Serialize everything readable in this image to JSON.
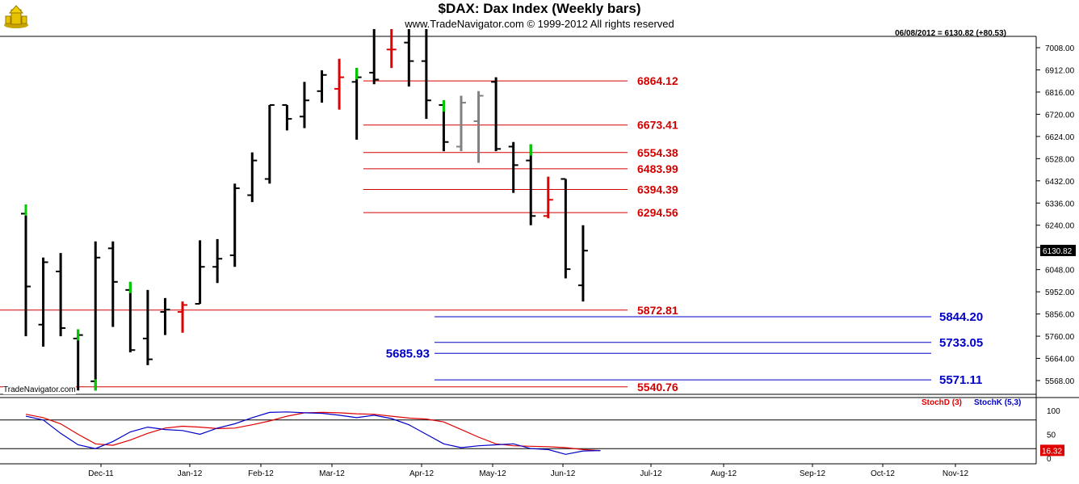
{
  "header": {
    "title": "$DAX:  Dax Index  (Weekly bars)",
    "copyright": "www.TradeNavigator.com © 1999-2012 All rights reserved",
    "last_readout": "06/08/2012 = 6130.82 (+80.53)",
    "watermark": "TradeNavigator.com"
  },
  "colors": {
    "bar_black": "#000000",
    "bar_red": "#e00000",
    "bar_gray": "#808080",
    "bar_green_tick": "#00cc00",
    "fib_red": "#d40000",
    "fib_blue": "#0000c8",
    "stoch_d": "#e00000",
    "stoch_k": "#0000c8"
  },
  "chart_data": [
    {
      "type": "ohlc",
      "title": "$DAX:  Dax Index  (Weekly bars)",
      "y_axis": {
        "ylim": [
          5510,
          7090
        ],
        "ticks": [
          "7008.00",
          "6912.00",
          "6816.00",
          "6720.00",
          "6624.00",
          "6528.00",
          "6432.00",
          "6336.00",
          "6240.00",
          "6144.00",
          "6048.00",
          "5952.00",
          "5856.00",
          "5760.00",
          "5664.00",
          "5568.00"
        ],
        "last_value_label": "6130.82"
      },
      "x_axis": {
        "months": [
          "Dec-11",
          "Jan-12",
          "Feb-12",
          "Mar-12",
          "Apr-12",
          "May-12",
          "Jun-12",
          "Jul-12",
          "Aug-12",
          "Sep-12",
          "Oct-12",
          "Nov-12"
        ]
      },
      "grid": false,
      "bars": [
        {
          "o": 6290,
          "h": 6330,
          "l": 5760,
          "c": 5975,
          "color": "black",
          "top_tick": "green"
        },
        {
          "o": 5810,
          "h": 6100,
          "l": 5715,
          "c": 6080,
          "color": "black"
        },
        {
          "o": 6040,
          "h": 6120,
          "l": 5760,
          "c": 5795,
          "color": "black"
        },
        {
          "o": 5750,
          "h": 5790,
          "l": 5525,
          "c": 5765,
          "color": "black",
          "top_tick": "green"
        },
        {
          "o": 5565,
          "h": 6170,
          "l": 5525,
          "c": 6100,
          "color": "black",
          "bottom_tick": "green"
        },
        {
          "o": 6140,
          "h": 6170,
          "l": 5800,
          "c": 5995,
          "color": "black"
        },
        {
          "o": 5960,
          "h": 5995,
          "l": 5690,
          "c": 5700,
          "color": "black",
          "top_tick": "green"
        },
        {
          "o": 5750,
          "h": 5960,
          "l": 5635,
          "c": 5660,
          "color": "black"
        },
        {
          "o": 5865,
          "h": 5925,
          "l": 5765,
          "c": 5875,
          "color": "black"
        },
        {
          "o": 5865,
          "h": 5910,
          "l": 5775,
          "c": 5895,
          "color": "red"
        },
        {
          "o": 5900,
          "h": 6175,
          "l": 5900,
          "c": 6060,
          "color": "black"
        },
        {
          "o": 6060,
          "h": 6180,
          "l": 5990,
          "c": 6095,
          "color": "black"
        },
        {
          "o": 6110,
          "h": 6420,
          "l": 6060,
          "c": 6400,
          "color": "black"
        },
        {
          "o": 6370,
          "h": 6555,
          "l": 6340,
          "c": 6520,
          "color": "black"
        },
        {
          "o": 6440,
          "h": 6760,
          "l": 6420,
          "c": 6760,
          "color": "black"
        },
        {
          "o": 6760,
          "h": 6760,
          "l": 6650,
          "c": 6700,
          "color": "black"
        },
        {
          "o": 6710,
          "h": 6860,
          "l": 6660,
          "c": 6780,
          "color": "black"
        },
        {
          "o": 6820,
          "h": 6910,
          "l": 6770,
          "c": 6890,
          "color": "black"
        },
        {
          "o": 6830,
          "h": 6960,
          "l": 6740,
          "c": 6880,
          "color": "red"
        },
        {
          "o": 6860,
          "h": 6920,
          "l": 6610,
          "c": 6880,
          "color": "black",
          "top_tick": "green"
        },
        {
          "o": 6900,
          "h": 7090,
          "l": 6850,
          "c": 6870,
          "color": "black"
        },
        {
          "o": 7000,
          "h": 7090,
          "l": 6920,
          "c": 7000,
          "color": "red"
        },
        {
          "o": 7030,
          "h": 7090,
          "l": 6840,
          "c": 6950,
          "color": "black"
        },
        {
          "o": 6950,
          "h": 7090,
          "l": 6700,
          "c": 6780,
          "color": "black"
        },
        {
          "o": 6760,
          "h": 6780,
          "l": 6560,
          "c": 6600,
          "color": "black",
          "top_tick": "green"
        },
        {
          "o": 6580,
          "h": 6800,
          "l": 6560,
          "c": 6770,
          "color": "gray"
        },
        {
          "o": 6690,
          "h": 6820,
          "l": 6510,
          "c": 6800,
          "color": "gray"
        },
        {
          "o": 6860,
          "h": 6880,
          "l": 6560,
          "c": 6570,
          "color": "black"
        },
        {
          "o": 6580,
          "h": 6600,
          "l": 6380,
          "c": 6500,
          "color": "black"
        },
        {
          "o": 6520,
          "h": 6590,
          "l": 6240,
          "c": 6280,
          "color": "black",
          "top_tick": "green"
        },
        {
          "o": 6280,
          "h": 6450,
          "l": 6270,
          "c": 6350,
          "color": "red"
        },
        {
          "o": 6440,
          "h": 6440,
          "l": 6010,
          "c": 6050,
          "color": "black"
        },
        {
          "o": 5980,
          "h": 6240,
          "l": 5910,
          "c": 6130,
          "color": "black"
        }
      ],
      "levels_red": [
        {
          "value": 6864.12,
          "label": "6864.12"
        },
        {
          "value": 6673.41,
          "label": "6673.41"
        },
        {
          "value": 6554.38,
          "label": "6554.38"
        },
        {
          "value": 6483.99,
          "label": "6483.99"
        },
        {
          "value": 6394.39,
          "label": "6394.39"
        },
        {
          "value": 6294.56,
          "label": "6294.56"
        },
        {
          "value": 5872.81,
          "label": "5872.81"
        },
        {
          "value": 5540.76,
          "label": "5540.76"
        }
      ],
      "levels_blue": [
        {
          "value": 5844.2,
          "label": "5844.20",
          "label_side": "right"
        },
        {
          "value": 5733.05,
          "label": "5733.05",
          "label_side": "right"
        },
        {
          "value": 5685.93,
          "label": "5685.93",
          "label_side": "left"
        },
        {
          "value": 5571.11,
          "label": "5571.11",
          "label_side": "right"
        }
      ]
    },
    {
      "type": "line",
      "legend": [
        "StochD (3)",
        "StochK (5,3)"
      ],
      "legend_placement": "top-right",
      "ylim": [
        0,
        100
      ],
      "ticks": [
        "100",
        "50",
        "0"
      ],
      "last_value_label": "16.32",
      "series": [
        {
          "name": "StochD (3)",
          "values": [
            92,
            85,
            72,
            50,
            30,
            27,
            38,
            52,
            63,
            67,
            65,
            62,
            63,
            70,
            78,
            88,
            95,
            96,
            95,
            93,
            92,
            88,
            84,
            82,
            76,
            60,
            44,
            30,
            26,
            25,
            24,
            22,
            18,
            16
          ]
        },
        {
          "name": "StochK (5,3)",
          "values": [
            88,
            80,
            52,
            28,
            20,
            35,
            55,
            65,
            60,
            58,
            50,
            63,
            72,
            85,
            96,
            97,
            95,
            94,
            90,
            85,
            90,
            83,
            70,
            50,
            30,
            22,
            26,
            28,
            30,
            20,
            18,
            8,
            15,
            16
          ]
        }
      ]
    }
  ]
}
